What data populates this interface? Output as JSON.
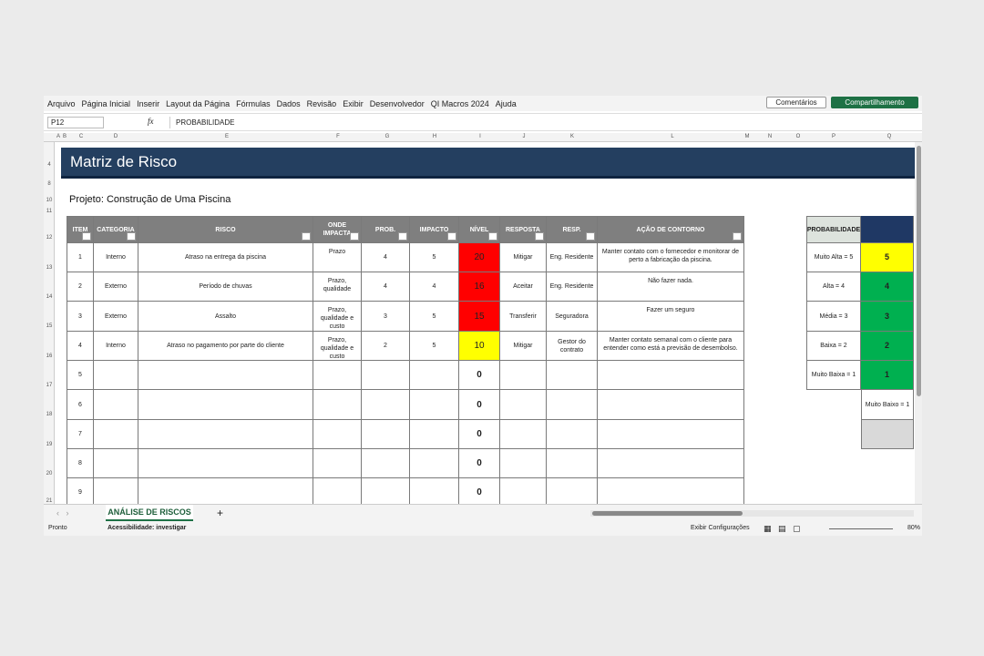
{
  "menu": [
    "Arquivo",
    "Página Inicial",
    "Inserir",
    "Layout da Página",
    "Fórmulas",
    "Dados",
    "Revisão",
    "Exibir",
    "Desenvolvedor",
    "QI Macros 2024",
    "Ajuda"
  ],
  "comments_button": "Comentários",
  "share_button": "Compartilhamento",
  "name_box": "P12",
  "fx": "fx",
  "formula": "PROBABILIDADE",
  "column_letters": [
    "A",
    "B",
    "C",
    "D",
    "E",
    "F",
    "G",
    "H",
    "I",
    "J",
    "K",
    "L",
    "M",
    "N",
    "O",
    "P",
    "Q"
  ],
  "row_numbers": [
    "4",
    "8",
    "10",
    "11",
    "12",
    "13",
    "14",
    "15",
    "16",
    "17",
    "18",
    "19",
    "20",
    "21"
  ],
  "sheet": {
    "title": "Matriz de Risco",
    "project": "Projeto: Construção de Uma Piscina",
    "headers": [
      "ITEM",
      "CATEGORIA",
      "RISCO",
      "ONDE IMPACTA",
      "PROB.",
      "IMPACTO",
      "NÍVEL",
      "RESPOSTA",
      "RESP.",
      "AÇÃO DE CONTORNO"
    ],
    "rows": [
      {
        "item": 1,
        "categoria": "Interno",
        "risco": "Atraso na entrega da piscina",
        "onde": "Prazo",
        "prob": 4,
        "impacto": 5,
        "nivel": 20,
        "nivel_color": "#ff0000",
        "resposta": "Mitigar",
        "resp": "Eng. Residente",
        "acao": "Manter contato com o fornecedor e monitorar de perto a fabricação da piscina."
      },
      {
        "item": 2,
        "categoria": "Externo",
        "risco": "Período de chuvas",
        "onde": "Prazo, qualidade",
        "prob": 4,
        "impacto": 4,
        "nivel": 16,
        "nivel_color": "#ff0000",
        "resposta": "Aceitar",
        "resp": "Eng. Residente",
        "acao": "Não fazer nada."
      },
      {
        "item": 3,
        "categoria": "Externo",
        "risco": "Assalto",
        "onde": "Prazo, qualidade e custo",
        "prob": 3,
        "impacto": 5,
        "nivel": 15,
        "nivel_color": "#ff0000",
        "resposta": "Transferir",
        "resp": "Seguradora",
        "acao": "Fazer um seguro"
      },
      {
        "item": 4,
        "categoria": "Interno",
        "risco": "Atraso no pagamento por parte do cliente",
        "onde": "Prazo, qualidade e custo",
        "prob": 2,
        "impacto": 5,
        "nivel": 10,
        "nivel_color": "#ffff00",
        "resposta": "Mitigar",
        "resp": "Gestor do contrato",
        "acao": "Manter contato semanal com o cliente para entender como está a previsão de desembolso."
      },
      {
        "item": 5,
        "nivel": 0
      },
      {
        "item": 6,
        "nivel": 0
      },
      {
        "item": 7,
        "nivel": 0
      },
      {
        "item": 8,
        "nivel": 0
      },
      {
        "item": 9,
        "nivel": 0
      }
    ],
    "legend": {
      "header": "PROBABILIDADE",
      "header_color": "#1f3864",
      "rows": [
        {
          "label": "Muito Alta = 5",
          "value": 5,
          "color": "#ffff00"
        },
        {
          "label": "Alta = 4",
          "value": 4,
          "color": "#00b050"
        },
        {
          "label": "Média = 3",
          "value": 3,
          "color": "#00b050"
        },
        {
          "label": "Baixa = 2",
          "value": 2,
          "color": "#00b050"
        },
        {
          "label": "Muito Baixa = 1",
          "value": 1,
          "color": "#00b050"
        }
      ],
      "extra": "Muito Baixo = 1"
    }
  },
  "tab": "ANÁLISE DE RISCOS",
  "add_tab": "+",
  "status": {
    "ready": "Pronto",
    "accessibility": "Acessibilidade: investigar",
    "view": "Exibir Configurações",
    "zoom": "80%"
  }
}
